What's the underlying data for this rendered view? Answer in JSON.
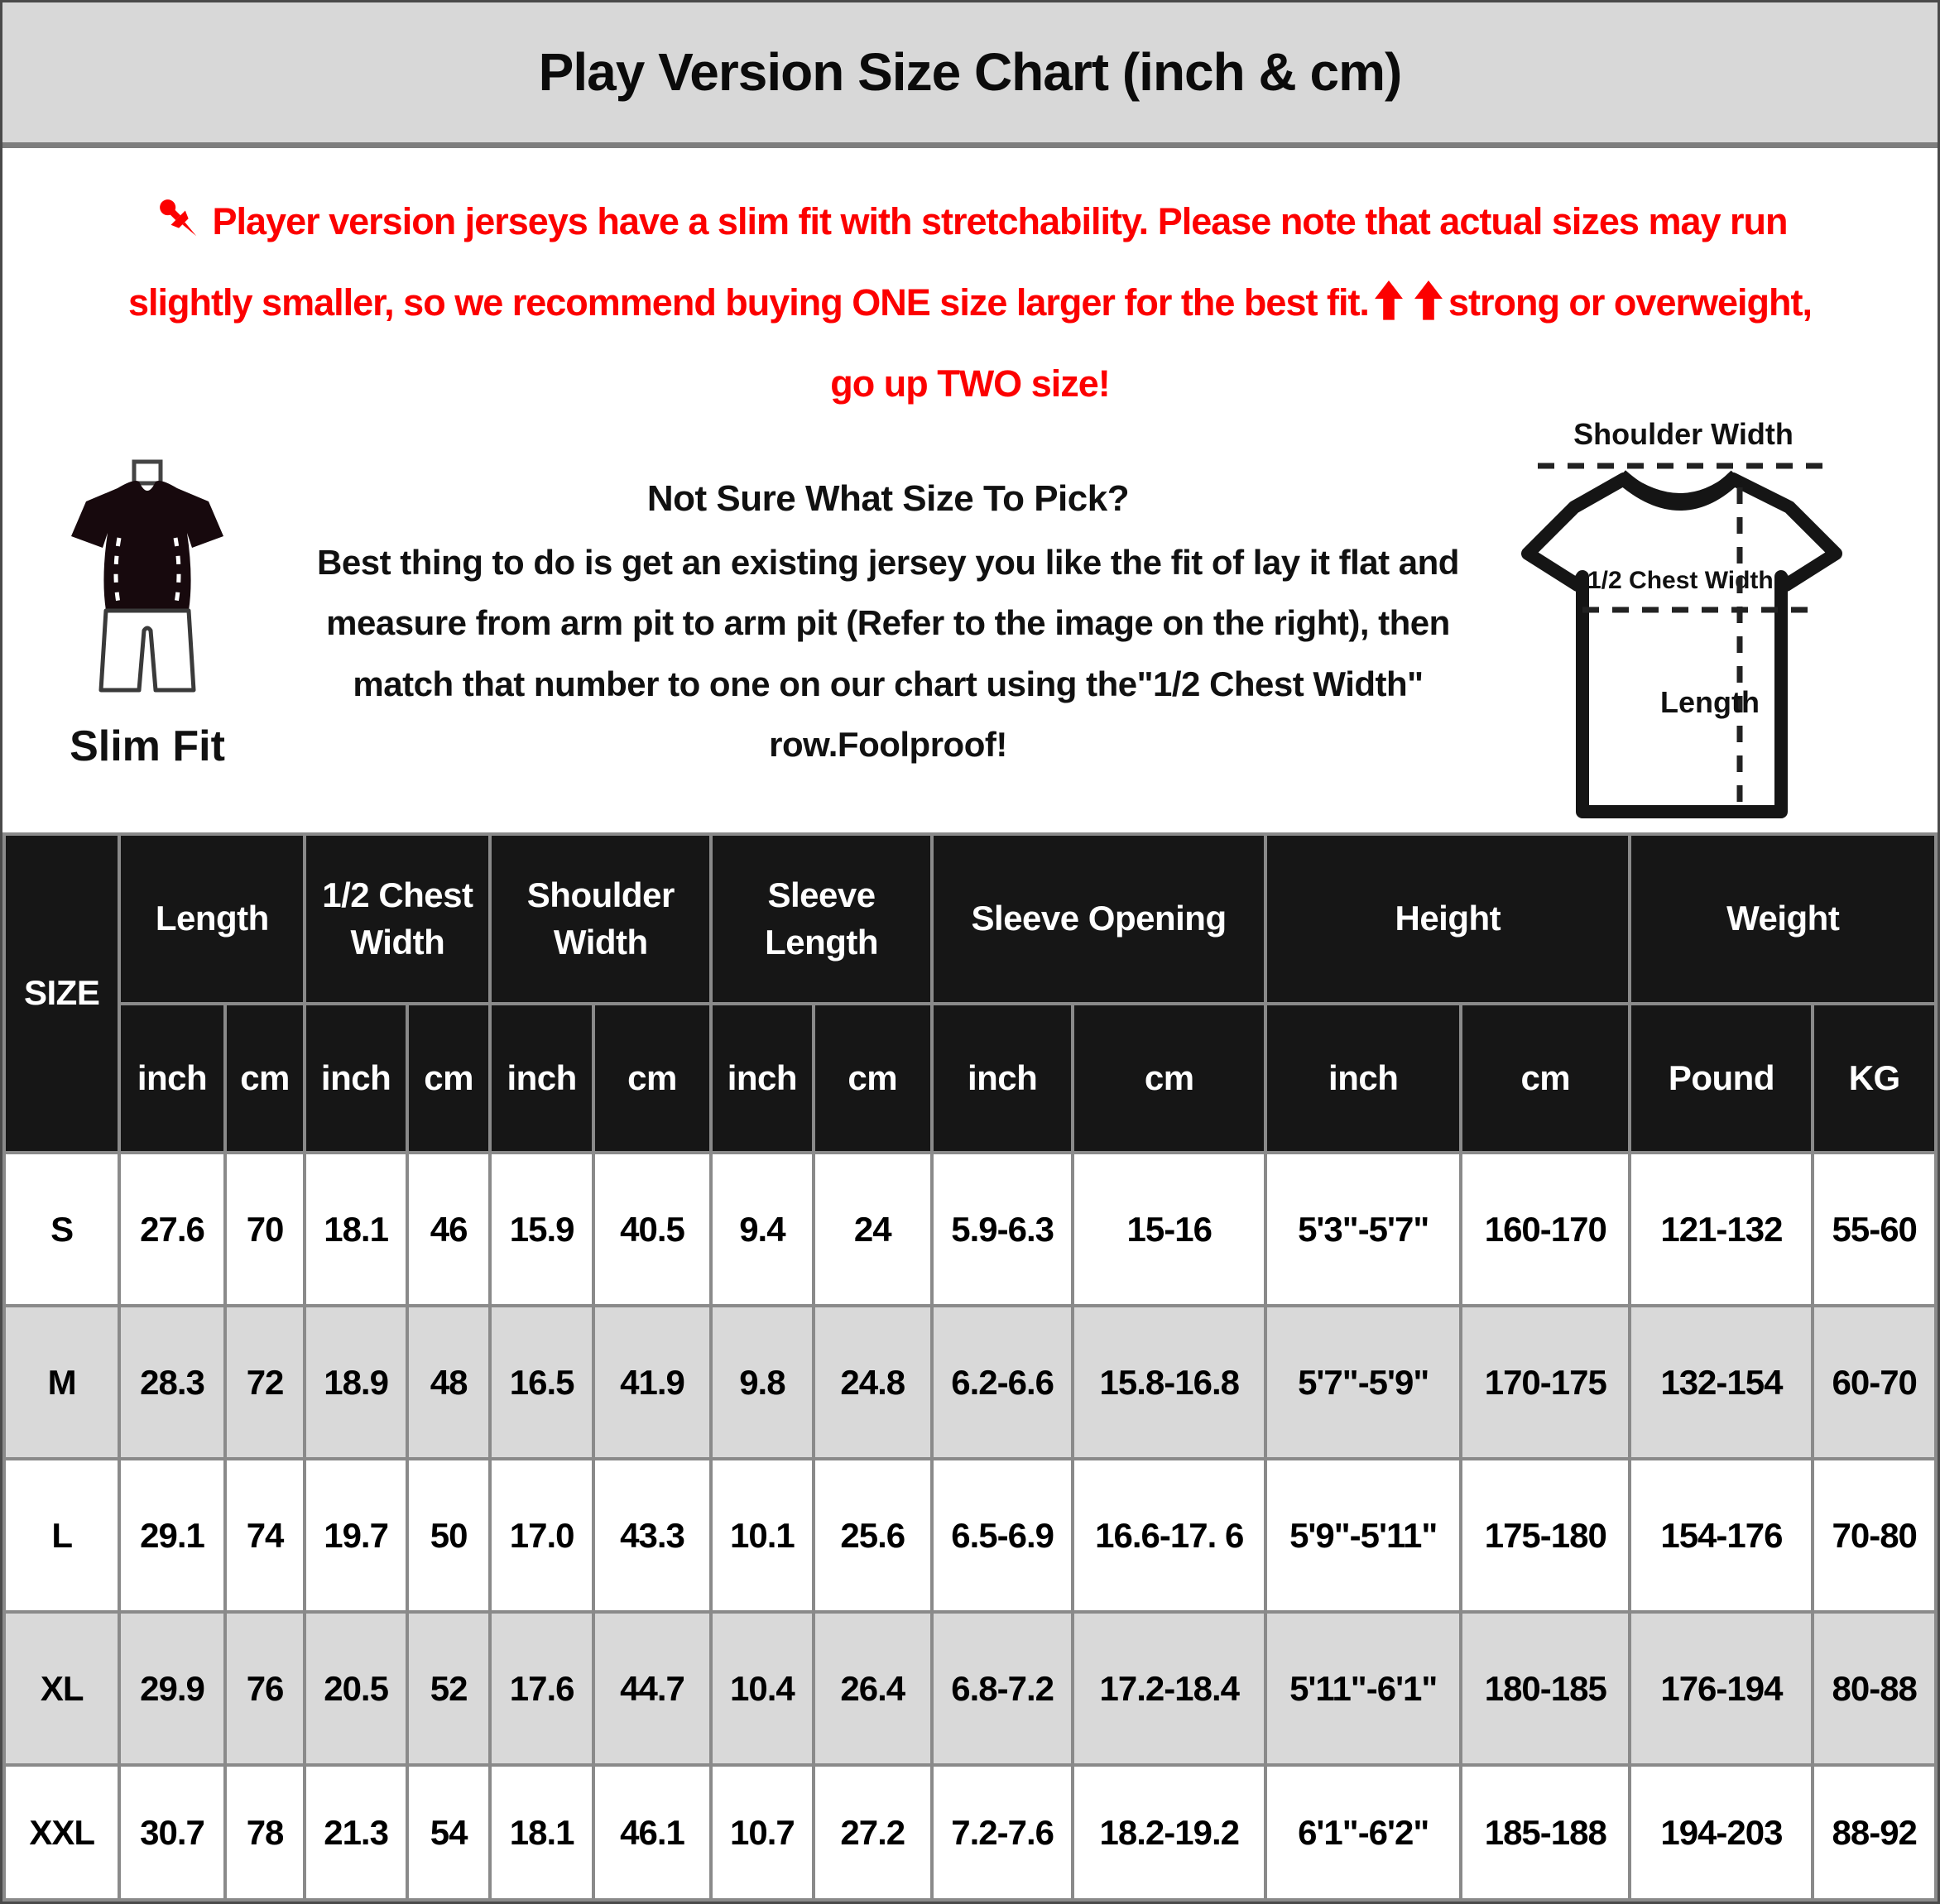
{
  "title": "Play Version Size Chart (inch & cm)",
  "notice": {
    "pin_icon": "pushpin-icon",
    "arrow_icon": "up-arrow-icon",
    "accent_color": "#fc0000",
    "line1": "Player version jerseys have a slim fit with stretchability. Please note that actual sizes may run",
    "line2_before": "slightly smaller, so we recommend buying ONE size larger for the best fit.",
    "line2_after": "strong or overweight,",
    "line3": "go up TWO size!"
  },
  "middle": {
    "slim_fit_label": "Slim Fit",
    "slim_fit_icon": "slim-fit-mannequin-icon",
    "advice_heading": "Not Sure What Size To Pick?",
    "advice_body": "Best thing to do is get an existing jersey you like the fit of lay it flat and measure from arm pit to arm pit (Refer to the image on the right), then match that number to one on our chart using the\"1/2 Chest Width\" row.Foolproof!",
    "diagram_icon": "tshirt-measure-diagram",
    "diagram_labels": {
      "shoulder_width": "Shoulder Width",
      "half_chest_width": "1/2 Chest Width",
      "length": "Length"
    }
  },
  "table": {
    "size_header": "SIZE",
    "header_bg": "#161616",
    "row_alt_bg": "#d9d9d9",
    "border_color": "#8a8a8a",
    "groups": [
      {
        "label": "Length",
        "sub": [
          "inch",
          "cm"
        ]
      },
      {
        "label": "1/2 Chest Width",
        "sub": [
          "inch",
          "cm"
        ]
      },
      {
        "label": "Shoulder Width",
        "sub": [
          "inch",
          "cm"
        ]
      },
      {
        "label": "Sleeve Length",
        "sub": [
          "inch",
          "cm"
        ]
      },
      {
        "label": "Sleeve Opening",
        "sub": [
          "inch",
          "cm"
        ]
      },
      {
        "label": "Height",
        "sub": [
          "inch",
          "cm"
        ]
      },
      {
        "label": "Weight",
        "sub": [
          "Pound",
          "KG"
        ]
      }
    ],
    "rows": [
      {
        "size": "S",
        "values": [
          "27.6",
          "70",
          "18.1",
          "46",
          "15.9",
          "40.5",
          "9.4",
          "24",
          "5.9-6.3",
          "15-16",
          "5'3\"-5'7\"",
          "160-170",
          "121-132",
          "55-60"
        ]
      },
      {
        "size": "M",
        "values": [
          "28.3",
          "72",
          "18.9",
          "48",
          "16.5",
          "41.9",
          "9.8",
          "24.8",
          "6.2-6.6",
          "15.8-16.8",
          "5'7\"-5'9\"",
          "170-175",
          "132-154",
          "60-70"
        ]
      },
      {
        "size": "L",
        "values": [
          "29.1",
          "74",
          "19.7",
          "50",
          "17.0",
          "43.3",
          "10.1",
          "25.6",
          "6.5-6.9",
          "16.6-17. 6",
          "5'9\"-5'11\"",
          "175-180",
          "154-176",
          "70-80"
        ]
      },
      {
        "size": "XL",
        "values": [
          "29.9",
          "76",
          "20.5",
          "52",
          "17.6",
          "44.7",
          "10.4",
          "26.4",
          "6.8-7.2",
          "17.2-18.4",
          "5'11\"-6'1\"",
          "180-185",
          "176-194",
          "80-88"
        ]
      },
      {
        "size": "XXL",
        "values": [
          "30.7",
          "78",
          "21.3",
          "54",
          "18.1",
          "46.1",
          "10.7",
          "27.2",
          "7.2-7.6",
          "18.2-19.2",
          "6'1\"-6'2\"",
          "185-188",
          "194-203",
          "88-92"
        ]
      }
    ]
  },
  "colors": {
    "title_band_bg": "#d8d8d8",
    "accent_red": "#fc0000"
  }
}
